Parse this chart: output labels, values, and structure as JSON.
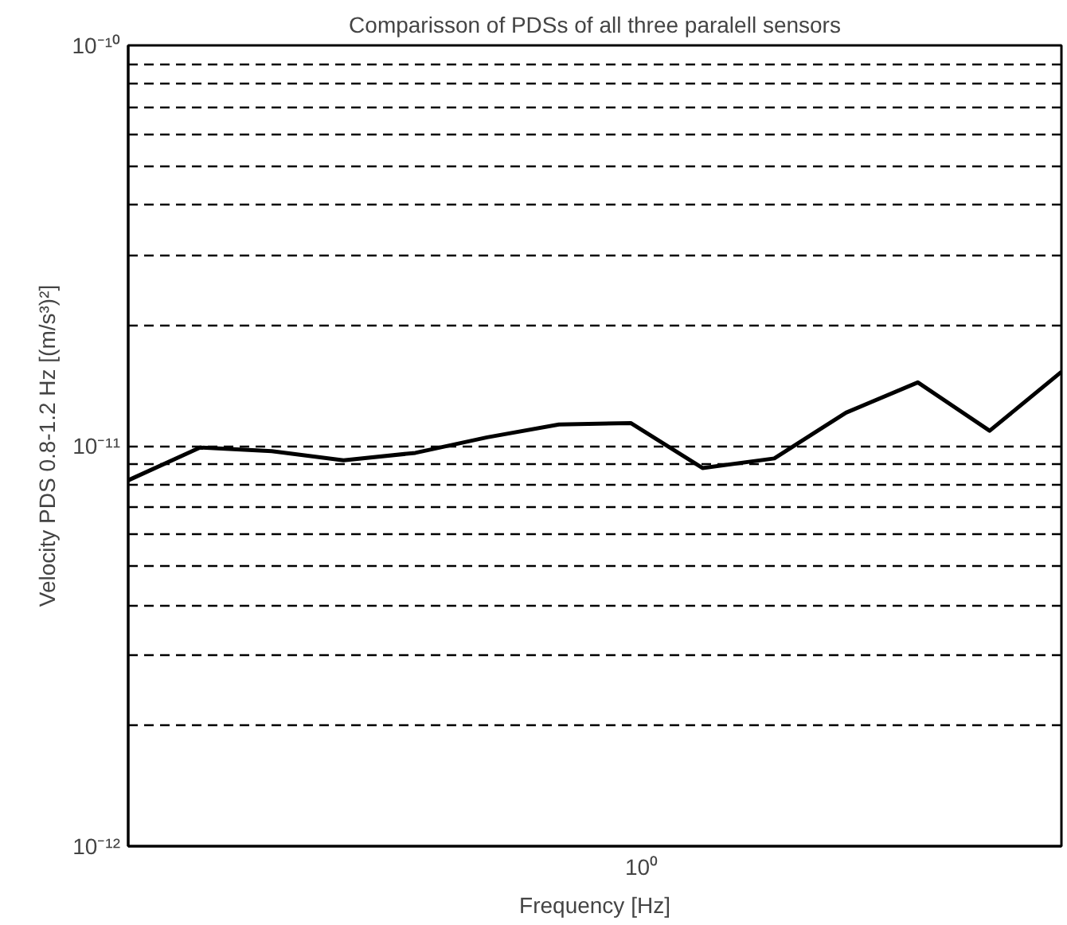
{
  "chart_data": {
    "type": "line",
    "title": "Comparisson of PDSs of all three paralell sensors",
    "xlabel": "Frequency [Hz]",
    "ylabel": "Velocity PDS 0.8-1.2 Hz [(m/s³)²]",
    "log": "y",
    "grid": "y",
    "line_style": "solid",
    "ylim": [
      1e-12,
      1e-10
    ],
    "annotations": [
      "10⁰"
    ],
    "yticks": [
      {
        "value": 1e-12,
        "label": "10⁻¹²"
      },
      {
        "value": 2e-12,
        "label": null
      },
      {
        "value": 3e-12,
        "label": null
      },
      {
        "value": 4e-12,
        "label": null
      },
      {
        "value": 5e-12,
        "label": null
      },
      {
        "value": 6e-12,
        "label": null
      },
      {
        "value": 7e-12,
        "label": null
      },
      {
        "value": 8e-12,
        "label": null
      },
      {
        "value": 9e-12,
        "label": null
      },
      {
        "value": 1e-11,
        "label": "10⁻¹¹"
      },
      {
        "value": 2e-11,
        "label": null
      },
      {
        "value": 3e-11,
        "label": null
      },
      {
        "value": 4e-11,
        "label": null
      },
      {
        "value": 5e-11,
        "label": null
      },
      {
        "value": 6e-11,
        "label": null
      },
      {
        "value": 7e-11,
        "label": null
      },
      {
        "value": 8e-11,
        "label": null
      },
      {
        "value": 9e-11,
        "label": null
      },
      {
        "value": 1e-10,
        "label": "10⁻¹⁰"
      }
    ],
    "categories": [
      null,
      null,
      null,
      null,
      null,
      null,
      null,
      null,
      null,
      null,
      null,
      null,
      null,
      null
    ],
    "series": [
      {
        "color": "#000000",
        "values": [
          8.2e-12,
          9.9e-12,
          9.7e-12,
          9.2e-12,
          9.6e-12,
          1.05e-11,
          1.13e-11,
          1.14e-11,
          8.8e-12,
          9.3e-12,
          1.21e-11,
          1.44e-11,
          1.09e-11,
          1.53e-11
        ]
      }
    ]
  }
}
